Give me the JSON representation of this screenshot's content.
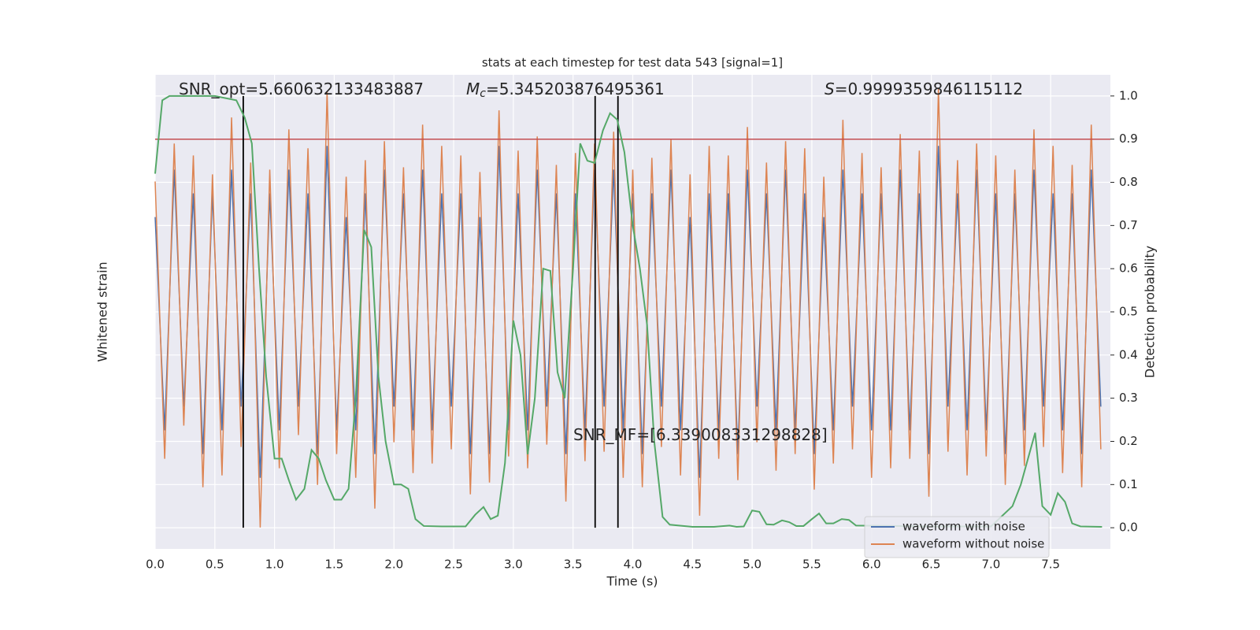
{
  "chart_data": {
    "type": "line",
    "title": "stats at each timestep for test data 543 [signal=1]",
    "xlabel": "Time (s)",
    "ylabel": "Whitened strain",
    "y2label": "Detection probability",
    "grid": true,
    "legend": "lower right",
    "xlim": [
      0,
      8
    ],
    "xticks": [
      {
        "value": 0,
        "label": "0.0"
      },
      0.5,
      {
        "value": 1,
        "label": "1.0"
      },
      1.5,
      {
        "value": 2,
        "label": "2.0"
      },
      2.5,
      {
        "value": 3,
        "label": "3.0"
      },
      3.5,
      {
        "value": 4,
        "label": "4.0"
      },
      4.5,
      {
        "value": 5,
        "label": "5.0"
      },
      5.5,
      {
        "value": 6,
        "label": "6.0"
      },
      6.5,
      {
        "value": 7,
        "label": "7.0"
      },
      7.5
    ],
    "ylim": [
      -1,
      1
    ],
    "y2lim": [
      -0.049,
      1.049
    ],
    "y2ticks": [
      {
        "value": 0,
        "label": "0.0"
      },
      0.1,
      0.2,
      0.3,
      0.4,
      0.5,
      0.6,
      0.7,
      0.8,
      0.9,
      {
        "value": 1,
        "label": "1.0"
      }
    ],
    "x": [
      0,
      0.08,
      0.16,
      0.24,
      0.32,
      0.4,
      0.48,
      0.56,
      0.64,
      0.72,
      0.8,
      0.88,
      0.96,
      1.04,
      1.12,
      1.2,
      1.28,
      1.36,
      1.44,
      1.52,
      1.6,
      1.68,
      1.76,
      1.84,
      1.92,
      2,
      2.08,
      2.16,
      2.24,
      2.32,
      2.4,
      2.48,
      2.56,
      2.64,
      2.72,
      2.8,
      2.88,
      2.96,
      3.04,
      3.12,
      3.2,
      3.28,
      3.36,
      3.44,
      3.52,
      3.6,
      3.68,
      3.76,
      3.84,
      3.92,
      4,
      4.08,
      4.16,
      4.24,
      4.32,
      4.4,
      4.48,
      4.56,
      4.64,
      4.72,
      4.8,
      4.88,
      4.96,
      5.04,
      5.12,
      5.2,
      5.28,
      5.36,
      5.44,
      5.52,
      5.6,
      5.68,
      5.76,
      5.84,
      5.92,
      6,
      6.08,
      6.16,
      6.24,
      6.32,
      6.4,
      6.48,
      6.56,
      6.64,
      6.72,
      6.8,
      6.88,
      6.96,
      7.04,
      7.12,
      7.2,
      7.28,
      7.36,
      7.44,
      7.52,
      7.6,
      7.68,
      7.76,
      7.84,
      7.92
    ],
    "series": [
      {
        "name": "waveform with noise",
        "color": "#4c72b0",
        "values": [
          0.4,
          -0.5,
          0.6,
          -0.4,
          0.5,
          -0.6,
          0.5,
          -0.5,
          0.6,
          -0.4,
          0.5,
          -0.7,
          0.5,
          -0.5,
          0.6,
          -0.4,
          0.5,
          -0.6,
          0.7,
          -0.5,
          0.4,
          -0.5,
          0.5,
          -0.6,
          0.6,
          -0.4,
          0.5,
          -0.5,
          0.6,
          -0.5,
          0.5,
          -0.4,
          0.5,
          -0.6,
          0.4,
          -0.6,
          0.7,
          -0.5,
          0.5,
          -0.5,
          0.6,
          -0.4,
          0.5,
          -0.6,
          0.5,
          -0.5,
          0.6,
          -0.4,
          0.6,
          -0.5,
          0.5,
          -0.6,
          0.5,
          -0.4,
          0.6,
          -0.5,
          0.4,
          -0.7,
          0.5,
          -0.5,
          0.5,
          -0.6,
          0.6,
          -0.4,
          0.5,
          -0.5,
          0.6,
          -0.5,
          0.5,
          -0.6,
          0.4,
          -0.5,
          0.6,
          -0.4,
          0.5,
          -0.5,
          0.5,
          -0.5,
          0.6,
          -0.5,
          0.5,
          -0.6,
          0.7,
          -0.4,
          0.5,
          -0.5,
          0.6,
          -0.5,
          0.5,
          -0.6,
          0.5,
          -0.5,
          0.6,
          -0.4,
          0.5,
          -0.5,
          0.5,
          -0.6,
          0.6,
          -0.4
        ]
      },
      {
        "name": "waveform without noise",
        "color": "#dd8452",
        "values": [
          0.55,
          -0.62,
          0.71,
          -0.48,
          0.66,
          -0.74,
          0.58,
          -0.69,
          0.82,
          -0.57,
          0.63,
          -0.91,
          0.6,
          -0.66,
          0.77,
          -0.52,
          0.69,
          -0.73,
          0.93,
          -0.6,
          0.57,
          -0.7,
          0.64,
          -0.83,
          0.72,
          -0.55,
          0.61,
          -0.68,
          0.79,
          -0.64,
          0.7,
          -0.58,
          0.66,
          -0.77,
          0.59,
          -0.72,
          0.85,
          -0.61,
          0.68,
          -0.66,
          0.74,
          -0.56,
          0.62,
          -0.8,
          0.67,
          -0.63,
          0.71,
          -0.59,
          0.76,
          -0.7,
          0.6,
          -0.74,
          0.65,
          -0.57,
          0.73,
          -0.69,
          0.58,
          -0.86,
          0.7,
          -0.62,
          0.66,
          -0.71,
          0.78,
          -0.55,
          0.63,
          -0.67,
          0.72,
          -0.6,
          0.69,
          -0.75,
          0.57,
          -0.64,
          0.81,
          -0.58,
          0.67,
          -0.7,
          0.61,
          -0.66,
          0.75,
          -0.62,
          0.68,
          -0.78,
          0.94,
          -0.59,
          0.64,
          -0.69,
          0.71,
          -0.61,
          0.66,
          -0.73,
          0.6,
          -0.65,
          0.77,
          -0.57,
          0.7,
          -0.68,
          0.62,
          -0.74,
          0.79,
          -0.58
        ]
      }
    ],
    "probability": {
      "color": "#55a868",
      "axis": "y2",
      "x": [
        0,
        0.06,
        0.12,
        0.3,
        0.5,
        0.68,
        0.75,
        0.81,
        0.87,
        0.93,
        1,
        1.06,
        1.12,
        1.18,
        1.25,
        1.31,
        1.37,
        1.43,
        1.5,
        1.56,
        1.62,
        1.68,
        1.75,
        1.81,
        1.87,
        1.93,
        2,
        2.06,
        2.12,
        2.18,
        2.25,
        2.4,
        2.6,
        2.68,
        2.75,
        2.81,
        2.87,
        2.93,
        3,
        3.06,
        3.12,
        3.18,
        3.25,
        3.31,
        3.37,
        3.43,
        3.5,
        3.56,
        3.62,
        3.68,
        3.75,
        3.81,
        3.87,
        3.93,
        4,
        4.06,
        4.12,
        4.18,
        4.25,
        4.31,
        4.5,
        4.68,
        4.81,
        4.87,
        4.93,
        5,
        5.06,
        5.12,
        5.18,
        5.25,
        5.31,
        5.37,
        5.43,
        5.5,
        5.56,
        5.62,
        5.68,
        5.75,
        5.81,
        5.87,
        6.5,
        7,
        7.18,
        7.25,
        7.37,
        7.43,
        7.5,
        7.56,
        7.62,
        7.68,
        7.75,
        7.93
      ],
      "values": [
        0.82,
        0.99,
        1,
        1,
        1,
        0.99,
        0.95,
        0.89,
        0.6,
        0.35,
        0.16,
        0.16,
        0.11,
        0.065,
        0.09,
        0.18,
        0.16,
        0.11,
        0.065,
        0.065,
        0.09,
        0.3,
        0.69,
        0.65,
        0.35,
        0.2,
        0.1,
        0.1,
        0.09,
        0.02,
        0.004,
        0.003,
        0.003,
        0.03,
        0.048,
        0.02,
        0.028,
        0.15,
        0.48,
        0.4,
        0.17,
        0.3,
        0.6,
        0.595,
        0.36,
        0.3,
        0.6,
        0.89,
        0.85,
        0.845,
        0.92,
        0.96,
        0.945,
        0.87,
        0.7,
        0.6,
        0.47,
        0.2,
        0.025,
        0.007,
        0.002,
        0.002,
        0.005,
        0.002,
        0.003,
        0.04,
        0.037,
        0.008,
        0.007,
        0.017,
        0.013,
        0.004,
        0.004,
        0.02,
        0.033,
        0.01,
        0.01,
        0.02,
        0.018,
        0.005,
        0.003,
        0.003,
        0.05,
        0.1,
        0.22,
        0.05,
        0.03,
        0.08,
        0.06,
        0.01,
        0.003,
        0.002
      ]
    },
    "threshold": {
      "value": 0.9,
      "color": "#c44e52"
    },
    "markers": {
      "x": [
        0.738,
        3.685,
        3.876
      ],
      "ymin": 0,
      "ymax": 1,
      "color": "#000000"
    },
    "annotations": [
      {
        "text": "SNR_opt=5.660632133483887"
      },
      {
        "symbol": "M",
        "subscript": "c",
        "text": "=5.345203876495361"
      },
      {
        "symbol": "S",
        "text": "=0.9999359846115112"
      },
      {
        "text": "SNR_MF=[6.339008331298828]"
      }
    ]
  }
}
